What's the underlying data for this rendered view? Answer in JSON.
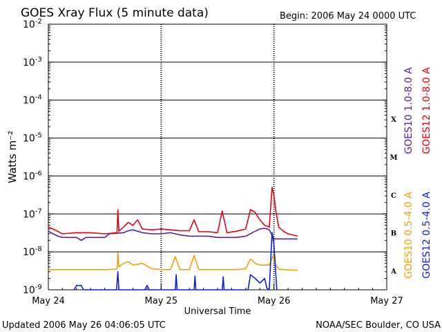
{
  "header": {
    "title": "GOES Xray Flux (5 minute data)",
    "begin": "Begin:  2006 May 24 0000 UTC"
  },
  "footer": {
    "updated": "Updated 2006 May 26 04:06:05 UTC",
    "credit": "NOAA/SEC Boulder, CO USA"
  },
  "colors": {
    "goes10_long": "#5a1a9a",
    "goes12_long": "#e8000b",
    "goes10_short": "#f0a000",
    "goes12_short": "#0a1ee8",
    "grid": "#000000"
  },
  "chart_data": {
    "type": "line",
    "title": "GOES Xray Flux (5 minute data)",
    "xlabel": "Universal Time",
    "ylabel": "Watts m⁻²",
    "xlim": [
      0,
      72
    ],
    "x_unit": "hours since 2006 May 24 0000 UTC",
    "x_ticks": [
      {
        "x": 0,
        "label": "May 24"
      },
      {
        "x": 24,
        "label": "May 25"
      },
      {
        "x": 48,
        "label": "May 26"
      },
      {
        "x": 72,
        "label": "May 27"
      }
    ],
    "yscale": "log",
    "ylim": [
      1e-09,
      0.01
    ],
    "y_ticks": [
      {
        "exp": -9,
        "label": "10",
        "sup": "-9"
      },
      {
        "exp": -8,
        "label": "10",
        "sup": "-8"
      },
      {
        "exp": -7,
        "label": "10",
        "sup": "-7"
      },
      {
        "exp": -6,
        "label": "10",
        "sup": "-6"
      },
      {
        "exp": -5,
        "label": "10",
        "sup": "-5"
      },
      {
        "exp": -4,
        "label": "10",
        "sup": "-4"
      },
      {
        "exp": -3,
        "label": "10",
        "sup": "-3"
      },
      {
        "exp": -2,
        "label": "10",
        "sup": "-2"
      }
    ],
    "flare_classes": [
      {
        "label": "X",
        "exp": -4
      },
      {
        "label": "M",
        "exp": -5
      },
      {
        "label": "C",
        "exp": -6
      },
      {
        "label": "B",
        "exp": -7
      },
      {
        "label": "A",
        "exp": -8
      }
    ],
    "legend_right": [
      {
        "name": "GOES10 1.0-8.0 A",
        "color": "#5a1a9a"
      },
      {
        "name": "GOES12 1.0-8.0 A",
        "color": "#e8000b"
      },
      {
        "name": "GOES10 0.5-4.0 A",
        "color": "#f0a000"
      },
      {
        "name": "GOES12 0.5-4.0 A",
        "color": "#0a1ee8"
      }
    ],
    "series": [
      {
        "name": "GOES10 1.0-8.0 A",
        "color": "#5a1a9a",
        "x": [
          0,
          1,
          2,
          3,
          6,
          7,
          8,
          9,
          12,
          13,
          16,
          17,
          18,
          20,
          22,
          24,
          26,
          28,
          30,
          32,
          34,
          36,
          38,
          40,
          42,
          44,
          45,
          46,
          47,
          48,
          49,
          50,
          52,
          53
        ],
        "y": [
          3.5e-08,
          3e-08,
          2.6e-08,
          2.4e-08,
          2.4e-08,
          2e-08,
          2.4e-08,
          2.4e-08,
          2.4e-08,
          3e-08,
          3.2e-08,
          3.6e-08,
          3.8e-08,
          3.2e-08,
          3e-08,
          3e-08,
          3.2e-08,
          2.8e-08,
          2.6e-08,
          2.6e-08,
          2.6e-08,
          2.4e-08,
          2.4e-08,
          2.4e-08,
          2.6e-08,
          3.5e-08,
          4e-08,
          4.2e-08,
          3.8e-08,
          2.2e-08,
          2.2e-08,
          2.2e-08,
          2.2e-08,
          2.2e-08
        ]
      },
      {
        "name": "GOES12 1.0-8.0 A",
        "color": "#e8000b",
        "x": [
          0,
          1,
          2,
          3,
          6,
          9,
          12,
          14.6,
          14.8,
          15,
          16,
          17,
          18,
          19,
          20,
          22,
          24,
          26,
          28,
          30,
          31,
          32,
          34,
          36,
          37,
          38,
          40,
          42,
          43,
          44,
          45,
          46,
          47,
          47.6,
          48,
          48.5,
          49,
          50,
          51,
          52,
          53
        ],
        "y": [
          4.5e-08,
          4e-08,
          3.5e-08,
          3e-08,
          3.2e-08,
          3.2e-08,
          3e-08,
          3.2e-08,
          1.3e-07,
          3.5e-08,
          4.5e-08,
          6e-08,
          5e-08,
          7e-08,
          4e-08,
          3.8e-08,
          4e-08,
          3.8e-08,
          3.6e-08,
          3.6e-08,
          7e-08,
          3.4e-08,
          3.4e-08,
          3.2e-08,
          1.2e-07,
          3.2e-08,
          3.5e-08,
          4e-08,
          1.3e-07,
          1.1e-07,
          7e-08,
          5e-08,
          4.5e-08,
          5e-07,
          3e-07,
          1e-07,
          4.5e-08,
          3.5e-08,
          3e-08,
          2.8e-08,
          2.6e-08
        ]
      },
      {
        "name": "GOES10 0.5-4.0 A",
        "color": "#f0a000",
        "x": [
          0,
          2,
          4,
          6,
          8,
          10,
          12,
          14.6,
          14.8,
          15,
          16,
          17,
          18,
          20,
          22,
          24,
          26,
          27,
          28,
          30,
          31,
          32,
          34,
          36,
          38,
          40,
          42,
          43,
          44,
          45,
          46,
          47,
          47.8,
          48.2,
          49,
          50,
          52,
          53
        ],
        "y": [
          3.4e-09,
          3.4e-09,
          3.4e-09,
          3.4e-09,
          3.4e-09,
          3.4e-09,
          3.4e-09,
          3.5e-09,
          9.5e-09,
          4e-09,
          5e-09,
          5.5e-09,
          4.5e-09,
          5e-09,
          3.6e-09,
          3.4e-09,
          3.4e-09,
          7.5e-09,
          3.4e-09,
          3.4e-09,
          8e-09,
          3.4e-09,
          3.4e-09,
          3.4e-09,
          3.4e-09,
          3.4e-09,
          3.6e-09,
          6.5e-09,
          5e-09,
          4.5e-09,
          4.5e-09,
          4.5e-09,
          8e-09,
          5e-09,
          3.5e-09,
          3.4e-09,
          3.3e-09,
          3.3e-09
        ]
      },
      {
        "name": "GOES12 0.5-4.0 A",
        "color": "#0a1ee8",
        "x": [
          5.5,
          6,
          7,
          7.5,
          14.5,
          14.8,
          15,
          20.5,
          21,
          21.5,
          27,
          27.2,
          27.4,
          31,
          31.2,
          31.4,
          37,
          37.2,
          37.4,
          42.5,
          43,
          44,
          45,
          46,
          46.5,
          47,
          47.6,
          48,
          48.6
        ],
        "y": [
          1e-09,
          1.3e-09,
          1.3e-09,
          1e-09,
          1e-09,
          3e-09,
          1e-09,
          1e-09,
          1.3e-09,
          1e-09,
          1e-09,
          2.5e-09,
          1e-09,
          1e-09,
          2.3e-09,
          1e-09,
          1e-09,
          2.2e-09,
          1e-09,
          1e-09,
          2.5e-09,
          2e-09,
          1.5e-09,
          2e-09,
          1.1e-09,
          1e-09,
          3.2e-08,
          1.5e-08,
          1e-09
        ]
      }
    ]
  }
}
